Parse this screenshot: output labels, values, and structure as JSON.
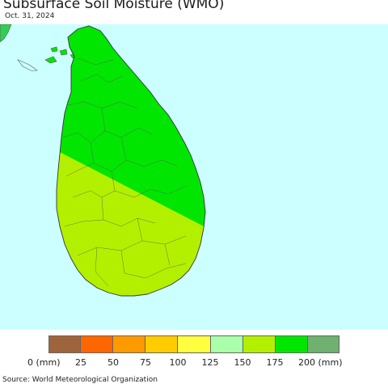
{
  "title": "Subsurface Soil Moisture (WMO)",
  "date": "Oct. 31, 2024",
  "source": "Source: World Meteorological Organization",
  "colors": {
    "sea": "#ccffff",
    "wet_zone": "#00e600",
    "moderate_zone": "#b3f000",
    "mainland_india": "#33cc55",
    "border": "#555555"
  },
  "legend": {
    "unit": "mm",
    "classes": [
      {
        "range": "0-25",
        "color": "#a0643c"
      },
      {
        "range": "25-50",
        "color": "#ff6600"
      },
      {
        "range": "50-75",
        "color": "#ff9900"
      },
      {
        "range": "75-100",
        "color": "#ffcc00"
      },
      {
        "range": "100-125",
        "color": "#ffff40"
      },
      {
        "range": "125-150",
        "color": "#aaffaa"
      },
      {
        "range": "150-175",
        "color": "#b3f000"
      },
      {
        "range": "175-200",
        "color": "#00e600"
      },
      {
        "range": ">200",
        "color": "#70b070"
      }
    ],
    "ticks": [
      "0 (mm)",
      "25",
      "50",
      "75",
      "100",
      "125",
      "150",
      "175",
      "200 (mm)"
    ]
  }
}
